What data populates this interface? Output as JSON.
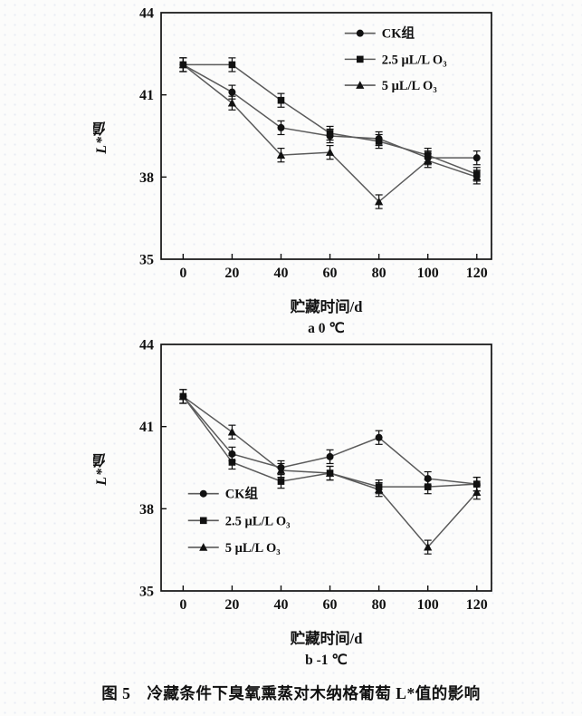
{
  "figure": {
    "caption": "图 5　冷藏条件下臭氧熏蒸对木纳格葡萄 L*值的影响"
  },
  "colors": {
    "line": "#5a5a5a",
    "marker": "#111111",
    "text": "#111111"
  },
  "chart_data": [
    {
      "type": "line",
      "subtitle": "a 0 ℃",
      "xlabel": "贮藏时间/d",
      "ylabel": "L*值",
      "x": [
        0,
        20,
        40,
        60,
        80,
        100,
        120
      ],
      "xticks": [
        0,
        20,
        40,
        60,
        80,
        100,
        120
      ],
      "yticks": [
        35,
        38,
        41,
        44
      ],
      "xlim": [
        -9,
        126
      ],
      "ylim": [
        35,
        44
      ],
      "error_bar": 0.25,
      "grid": false,
      "legend": {
        "pos": "top-right",
        "x": 66,
        "y": 43.25,
        "dy": 0.95
      },
      "series": [
        {
          "name": "CK组",
          "marker": "circle",
          "values": [
            42.1,
            41.1,
            39.8,
            39.5,
            39.4,
            38.7,
            38.7
          ]
        },
        {
          "name": "2.5 μL/L O₃",
          "marker": "square",
          "values": [
            42.1,
            42.1,
            40.8,
            39.6,
            39.3,
            38.8,
            38.1
          ]
        },
        {
          "name": "5 μL/L O₃",
          "marker": "triangle",
          "values": [
            42.1,
            40.7,
            38.8,
            38.9,
            37.1,
            38.6,
            38.0
          ]
        }
      ]
    },
    {
      "type": "line",
      "subtitle": "b -1 ℃",
      "xlabel": "贮藏时间/d",
      "ylabel": "L*值",
      "x": [
        0,
        20,
        40,
        60,
        80,
        100,
        120
      ],
      "xticks": [
        0,
        20,
        40,
        60,
        80,
        100,
        120
      ],
      "yticks": [
        35,
        38,
        41,
        44
      ],
      "xlim": [
        -9,
        126
      ],
      "ylim": [
        35,
        44
      ],
      "error_bar": 0.25,
      "grid": false,
      "legend": {
        "pos": "left-lower",
        "x": 2,
        "y": 38.55,
        "dy": 0.98
      },
      "series": [
        {
          "name": "CK组",
          "marker": "circle",
          "values": [
            42.1,
            40.0,
            39.5,
            39.9,
            40.6,
            39.1,
            38.9
          ]
        },
        {
          "name": "2.5 μL/L O₃",
          "marker": "square",
          "values": [
            42.1,
            39.7,
            39.0,
            39.3,
            38.8,
            38.8,
            38.9
          ]
        },
        {
          "name": "5 μL/L O₃",
          "marker": "triangle",
          "values": [
            42.1,
            40.8,
            39.4,
            39.3,
            38.7,
            36.6,
            38.6
          ]
        }
      ]
    }
  ]
}
